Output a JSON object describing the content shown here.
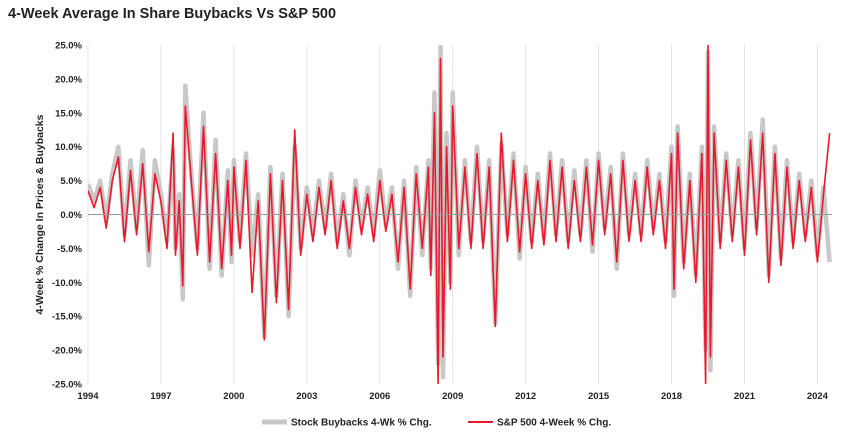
{
  "chart_data": {
    "type": "line",
    "title": "4-Week Average In Share Buybacks Vs S&P 500",
    "ylabel": "4-Week % Change In Prices & Buybacks",
    "xlabel": "",
    "xlim": [
      1994.0,
      2024.6
    ],
    "ylim": [
      -25,
      25
    ],
    "y_ticks": [
      25,
      20,
      15,
      10,
      5,
      0,
      -5,
      -10,
      -15,
      -20,
      -25
    ],
    "y_tick_labels": [
      "25.0%",
      "20.0%",
      "15.0%",
      "10.0%",
      "5.0%",
      "0.0%",
      "-5.0%",
      "-10.0%",
      "-15.0%",
      "-20.0%",
      "-25.0%"
    ],
    "x_ticks": [
      1994,
      1997,
      2000,
      2003,
      2006,
      2009,
      2012,
      2015,
      2018,
      2021,
      2024
    ],
    "x_tick_labels": [
      "1994",
      "1997",
      "2000",
      "2003",
      "2006",
      "2009",
      "2012",
      "2015",
      "2018",
      "2021",
      "2024"
    ],
    "grid": "vertical",
    "legend_position": "bottom",
    "series": [
      {
        "name": "Stock Buybacks 4-Wk % Chg.",
        "color": "#c8c8c8",
        "x": [
          1994.0,
          1994.25,
          1994.5,
          1994.75,
          1995.0,
          1995.25,
          1995.5,
          1995.75,
          1996.0,
          1996.25,
          1996.5,
          1996.75,
          1997.0,
          1997.25,
          1997.5,
          1997.6,
          1997.75,
          1997.9,
          1998.0,
          1998.25,
          1998.5,
          1998.75,
          1999.0,
          1999.25,
          1999.5,
          1999.75,
          1999.9,
          2000.0,
          2000.25,
          2000.5,
          2000.75,
          2001.0,
          2001.25,
          2001.5,
          2001.75,
          2002.0,
          2002.25,
          2002.5,
          2002.75,
          2003.0,
          2003.25,
          2003.5,
          2003.75,
          2004.0,
          2004.25,
          2004.5,
          2004.75,
          2005.0,
          2005.25,
          2005.5,
          2005.75,
          2006.0,
          2006.25,
          2006.5,
          2006.75,
          2007.0,
          2007.25,
          2007.5,
          2007.75,
          2008.0,
          2008.1,
          2008.25,
          2008.4,
          2008.5,
          2008.6,
          2008.75,
          2008.9,
          2009.0,
          2009.25,
          2009.5,
          2009.75,
          2010.0,
          2010.25,
          2010.5,
          2010.75,
          2011.0,
          2011.25,
          2011.5,
          2011.75,
          2012.0,
          2012.25,
          2012.5,
          2012.75,
          2013.0,
          2013.25,
          2013.5,
          2013.75,
          2014.0,
          2014.25,
          2014.5,
          2014.75,
          2015.0,
          2015.25,
          2015.5,
          2015.75,
          2016.0,
          2016.25,
          2016.5,
          2016.75,
          2017.0,
          2017.25,
          2017.5,
          2017.75,
          2018.0,
          2018.1,
          2018.25,
          2018.5,
          2018.75,
          2019.0,
          2019.25,
          2019.4,
          2019.5,
          2019.6,
          2019.75,
          2020.0,
          2020.25,
          2020.5,
          2020.75,
          2021.0,
          2021.25,
          2021.5,
          2021.75,
          2022.0,
          2022.25,
          2022.5,
          2022.75,
          2023.0,
          2023.25,
          2023.5,
          2023.75,
          2024.0,
          2024.25,
          2024.5
        ],
        "values": [
          4.5,
          2.0,
          5.0,
          -1.0,
          6.0,
          10.0,
          -3.0,
          8.0,
          -2.0,
          9.5,
          -7.5,
          8.0,
          3.0,
          -4.0,
          9.5,
          -5.0,
          3.0,
          -12.5,
          19.0,
          6.0,
          -5.0,
          15.0,
          -8.0,
          11.0,
          -9.0,
          6.5,
          -7.0,
          8.0,
          -4.0,
          9.0,
          -6.0,
          3.0,
          -18.0,
          7.0,
          -12.0,
          6.0,
          -15.0,
          10.0,
          -5.0,
          4.0,
          -3.0,
          5.0,
          -2.0,
          6.0,
          -4.0,
          3.0,
          -6.0,
          5.0,
          -2.0,
          4.0,
          -3.0,
          6.5,
          -1.5,
          4.0,
          -8.0,
          5.0,
          -12.0,
          7.0,
          -6.0,
          8.0,
          -8.0,
          18.0,
          -22.0,
          25.0,
          -24.0,
          12.0,
          -10.0,
          18.0,
          -6.0,
          8.0,
          -4.0,
          10.0,
          -4.0,
          8.0,
          -16.0,
          10.5,
          -3.0,
          9.0,
          -6.5,
          7.0,
          -4.0,
          6.0,
          -3.5,
          9.0,
          -3.0,
          8.0,
          -4.0,
          6.5,
          -3.0,
          8.0,
          -5.5,
          9.0,
          -2.0,
          7.0,
          -8.0,
          9.0,
          -3.0,
          6.0,
          -3.0,
          8.0,
          -2.0,
          6.0,
          -4.0,
          10.0,
          -12.0,
          13.0,
          -7.0,
          6.0,
          -9.0,
          10.0,
          -20.0,
          24.0,
          -23.0,
          13.0,
          -4.0,
          9.0,
          -3.0,
          8.0,
          -5.0,
          12.0,
          -2.0,
          14.0,
          -9.0,
          10.0,
          -6.5,
          8.0,
          -4.0,
          6.0,
          -3.0,
          5.0,
          -6.0,
          4.0,
          -7.0
        ]
      },
      {
        "name": "S&P 500 4-Week % Chg.",
        "color": "#e8192c",
        "x": [
          1994.0,
          1994.25,
          1994.5,
          1994.75,
          1995.0,
          1995.25,
          1995.5,
          1995.75,
          1996.0,
          1996.25,
          1996.5,
          1996.75,
          1997.0,
          1997.25,
          1997.5,
          1997.6,
          1997.75,
          1997.9,
          1998.0,
          1998.25,
          1998.5,
          1998.75,
          1999.0,
          1999.25,
          1999.5,
          1999.75,
          1999.9,
          2000.0,
          2000.25,
          2000.5,
          2000.75,
          2001.0,
          2001.25,
          2001.5,
          2001.75,
          2002.0,
          2002.25,
          2002.5,
          2002.75,
          2003.0,
          2003.25,
          2003.5,
          2003.75,
          2004.0,
          2004.25,
          2004.5,
          2004.75,
          2005.0,
          2005.25,
          2005.5,
          2005.75,
          2006.0,
          2006.25,
          2006.5,
          2006.75,
          2007.0,
          2007.25,
          2007.5,
          2007.75,
          2008.0,
          2008.1,
          2008.25,
          2008.4,
          2008.5,
          2008.6,
          2008.75,
          2008.9,
          2009.0,
          2009.25,
          2009.5,
          2009.75,
          2010.0,
          2010.25,
          2010.5,
          2010.75,
          2011.0,
          2011.25,
          2011.5,
          2011.75,
          2012.0,
          2012.25,
          2012.5,
          2012.75,
          2013.0,
          2013.25,
          2013.5,
          2013.75,
          2014.0,
          2014.25,
          2014.5,
          2014.75,
          2015.0,
          2015.25,
          2015.5,
          2015.75,
          2016.0,
          2016.25,
          2016.5,
          2016.75,
          2017.0,
          2017.25,
          2017.5,
          2017.75,
          2018.0,
          2018.1,
          2018.25,
          2018.5,
          2018.75,
          2019.0,
          2019.25,
          2019.4,
          2019.5,
          2019.6,
          2019.75,
          2020.0,
          2020.25,
          2020.5,
          2020.75,
          2021.0,
          2021.25,
          2021.5,
          2021.75,
          2022.0,
          2022.25,
          2022.5,
          2022.75,
          2023.0,
          2023.25,
          2023.5,
          2023.75,
          2024.0,
          2024.25,
          2024.5
        ],
        "values": [
          3.5,
          1.0,
          4.0,
          -2.0,
          5.0,
          8.5,
          -4.0,
          6.5,
          -3.0,
          7.5,
          -5.5,
          6.0,
          2.0,
          -5.0,
          12.0,
          -6.0,
          2.0,
          -10.5,
          16.0,
          5.0,
          -6.0,
          13.0,
          -7.0,
          9.0,
          -8.0,
          5.0,
          -6.0,
          7.0,
          -5.0,
          8.0,
          -11.5,
          2.0,
          -18.5,
          6.0,
          -13.0,
          5.0,
          -14.0,
          12.5,
          -6.0,
          3.0,
          -4.0,
          4.0,
          -3.0,
          5.0,
          -5.0,
          2.0,
          -5.0,
          4.0,
          -3.0,
          3.0,
          -4.0,
          5.0,
          -2.5,
          3.0,
          -7.0,
          4.0,
          -11.0,
          6.0,
          -5.0,
          7.0,
          -9.0,
          15.0,
          -25.0,
          23.0,
          -21.0,
          10.0,
          -11.0,
          16.0,
          -5.0,
          7.0,
          -5.0,
          9.0,
          -5.0,
          7.0,
          -16.5,
          12.0,
          -4.0,
          8.0,
          -5.5,
          6.0,
          -5.0,
          5.0,
          -4.5,
          8.0,
          -4.0,
          7.0,
          -5.0,
          5.0,
          -4.0,
          7.0,
          -4.5,
          8.0,
          -3.0,
          6.0,
          -7.0,
          8.0,
          -4.0,
          5.0,
          -4.0,
          7.0,
          -3.0,
          5.0,
          -5.0,
          9.0,
          -11.0,
          12.0,
          -8.0,
          5.0,
          -10.0,
          9.0,
          -25.0,
          25.0,
          -21.0,
          12.0,
          -5.0,
          8.0,
          -4.0,
          7.0,
          -6.0,
          11.0,
          -3.0,
          12.0,
          -10.0,
          9.0,
          -7.5,
          7.0,
          -5.0,
          5.0,
          -4.0,
          4.0,
          -7.0,
          3.0,
          12.0
        ]
      }
    ]
  }
}
